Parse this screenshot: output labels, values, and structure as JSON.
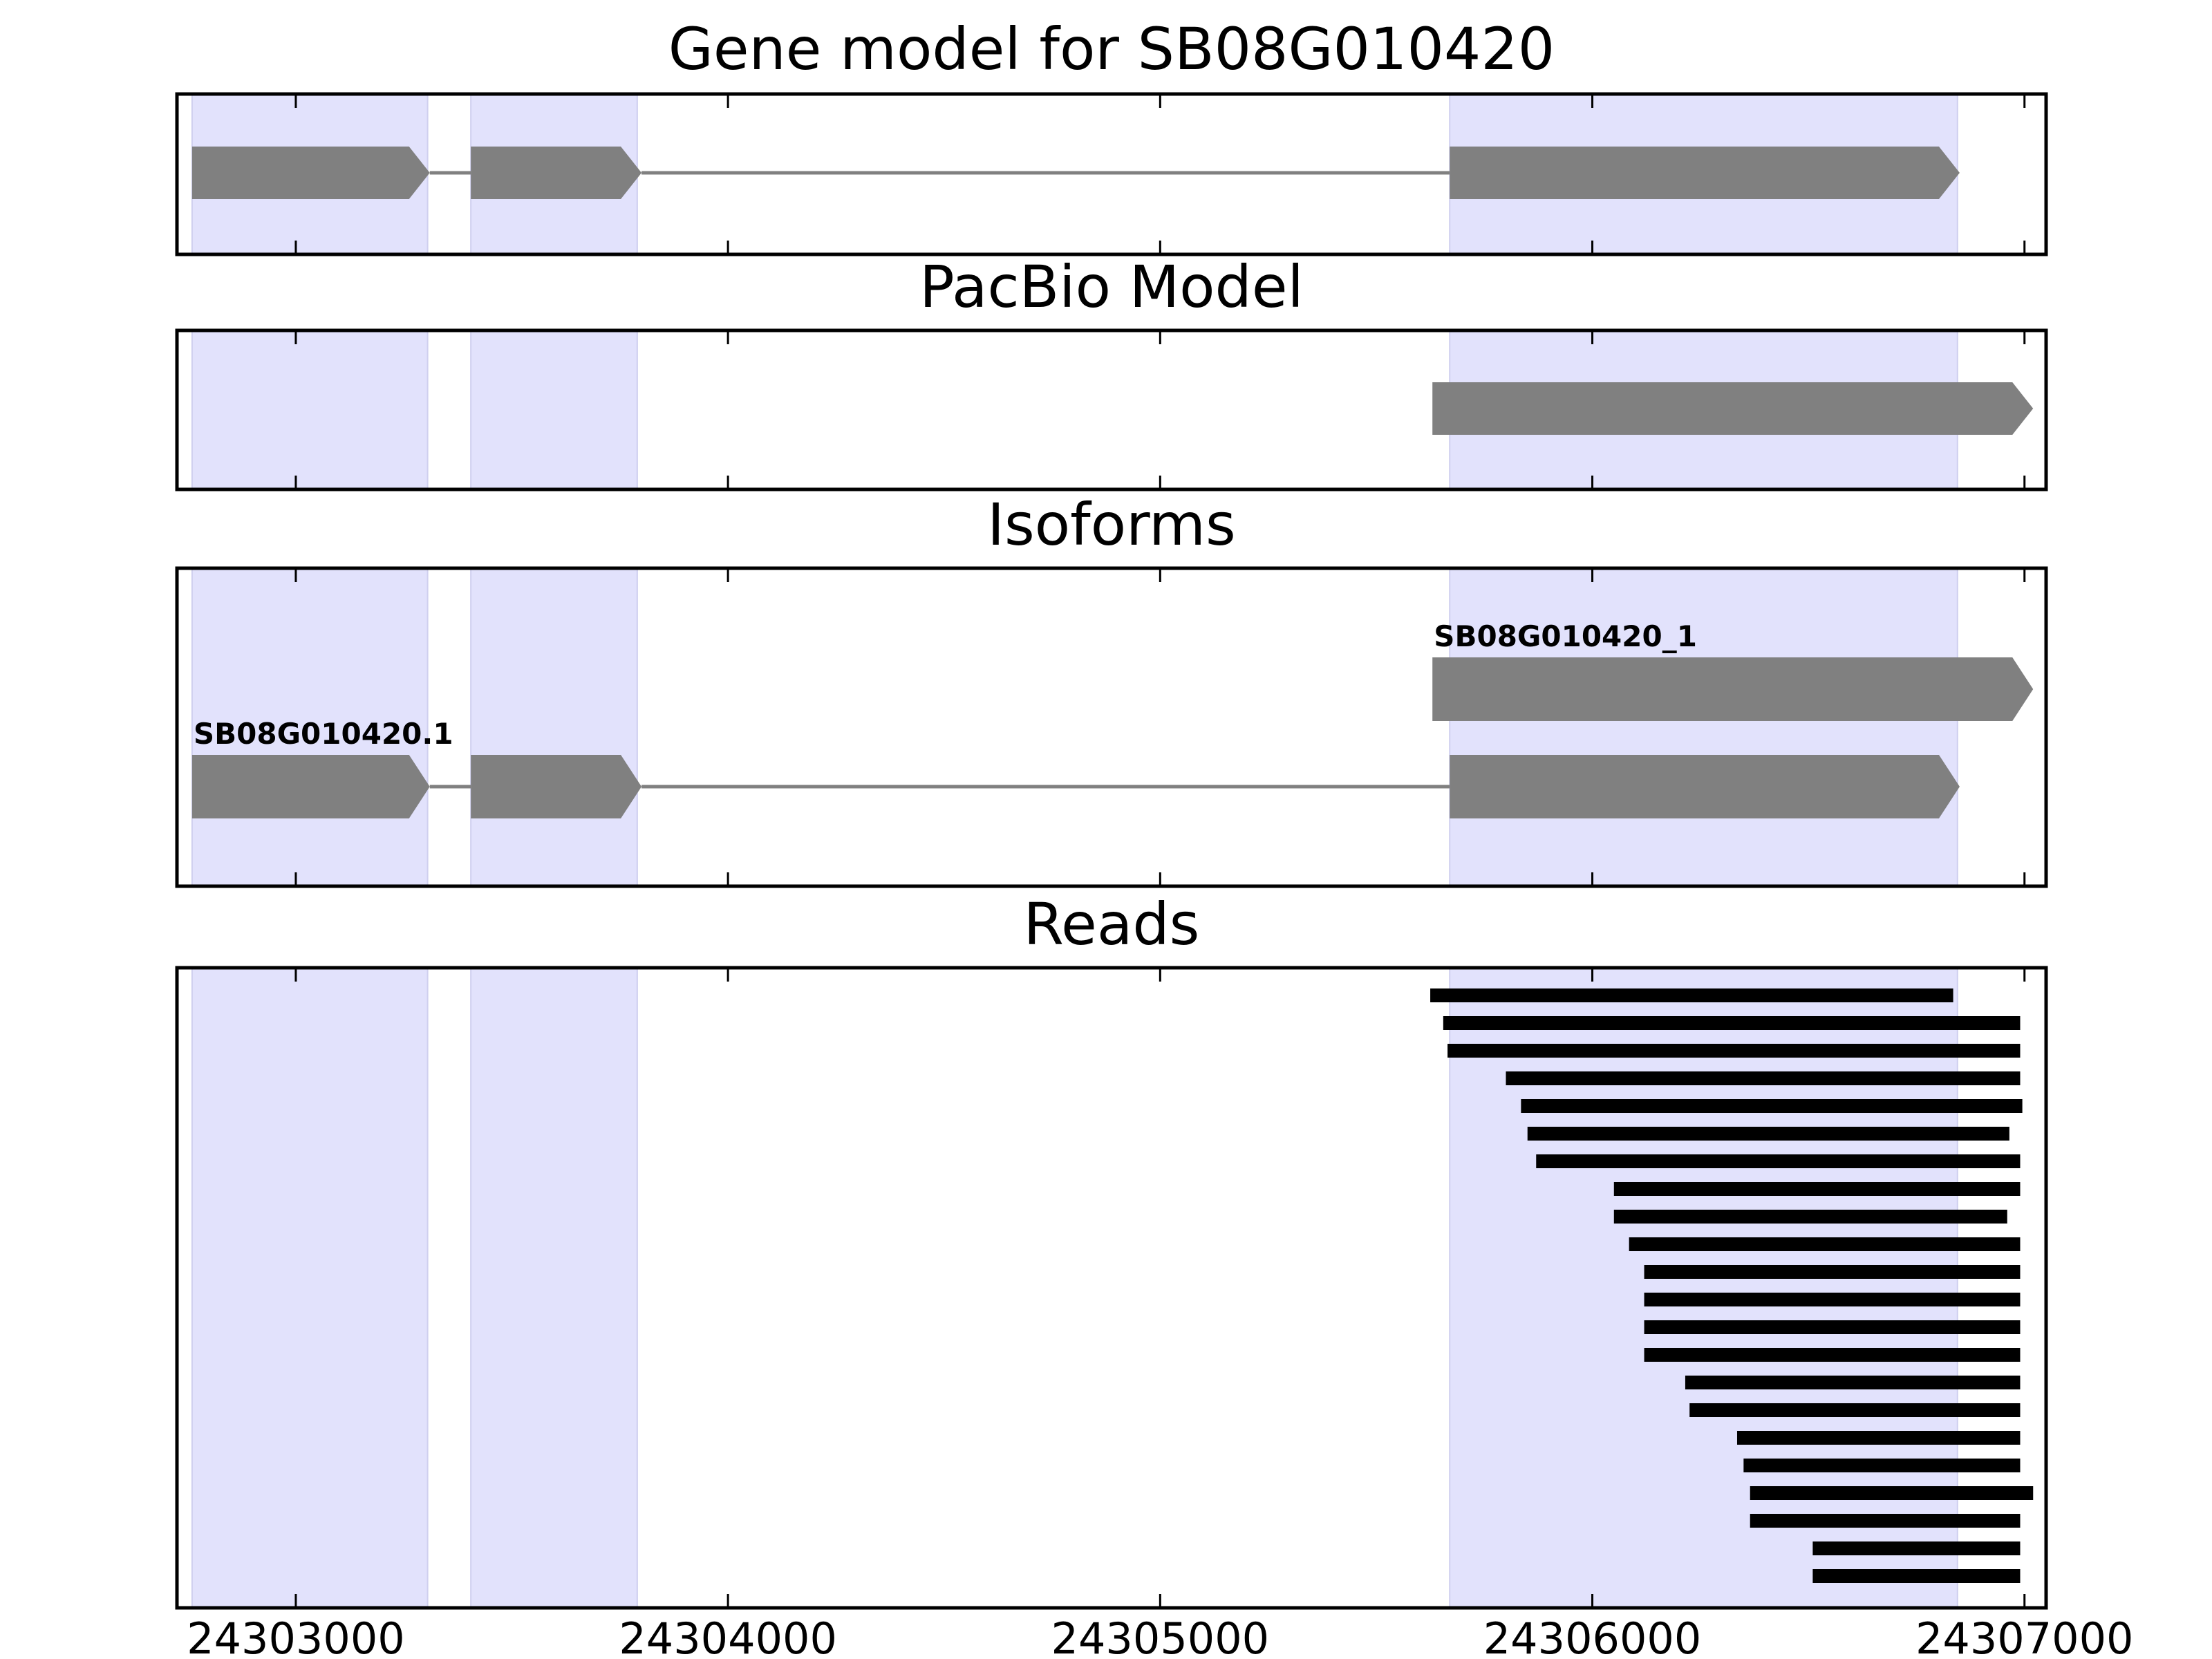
{
  "chart_data": {
    "type": "gene-track",
    "x_ticks": [
      24303000,
      24304000,
      24305000,
      24306000,
      24307000
    ],
    "x_tick_labels": [
      "24303000",
      "24304000",
      "24305000",
      "24306000",
      "24307000"
    ],
    "xlim": [
      24302725,
      24307050
    ],
    "colors": {
      "feature": "#808080",
      "highlight": "#e2e2fc",
      "read": "#000000",
      "intron": "#808080"
    },
    "highlight_regions": [
      [
        24302760,
        24303305
      ],
      [
        24303405,
        24303790
      ],
      [
        24305670,
        24306845
      ]
    ],
    "panels": [
      {
        "title": "Gene model for SB08G010420",
        "models": [
          {
            "label": "",
            "exons": [
              [
                24302760,
                24303310
              ],
              [
                24303405,
                24303800
              ],
              [
                24305670,
                24306850
              ]
            ]
          }
        ]
      },
      {
        "title": "PacBio Model",
        "models": [
          {
            "label": "",
            "exons": [
              [
                24305630,
                24307020
              ]
            ]
          }
        ]
      },
      {
        "title": "Isoforms",
        "models": [
          {
            "label": "SB08G010420_1",
            "exons": [
              [
                24305630,
                24307020
              ]
            ]
          },
          {
            "label": "SB08G010420.1",
            "exons": [
              [
                24302760,
                24303310
              ],
              [
                24303405,
                24303800
              ],
              [
                24305670,
                24306850
              ]
            ]
          }
        ]
      },
      {
        "title": "Reads",
        "reads": [
          [
            24305625,
            24306835
          ],
          [
            24305655,
            24306990
          ],
          [
            24305665,
            24306990
          ],
          [
            24305800,
            24306990
          ],
          [
            24305835,
            24306995
          ],
          [
            24305850,
            24306965
          ],
          [
            24305870,
            24306990
          ],
          [
            24306050,
            24306990
          ],
          [
            24306050,
            24306960
          ],
          [
            24306085,
            24306990
          ],
          [
            24306120,
            24306990
          ],
          [
            24306120,
            24306990
          ],
          [
            24306120,
            24306990
          ],
          [
            24306120,
            24306990
          ],
          [
            24306215,
            24306990
          ],
          [
            24306225,
            24306990
          ],
          [
            24306335,
            24306990
          ],
          [
            24306350,
            24306990
          ],
          [
            24306365,
            24307020
          ],
          [
            24306365,
            24306990
          ],
          [
            24306510,
            24306990
          ],
          [
            24306510,
            24306990
          ]
        ]
      }
    ]
  }
}
